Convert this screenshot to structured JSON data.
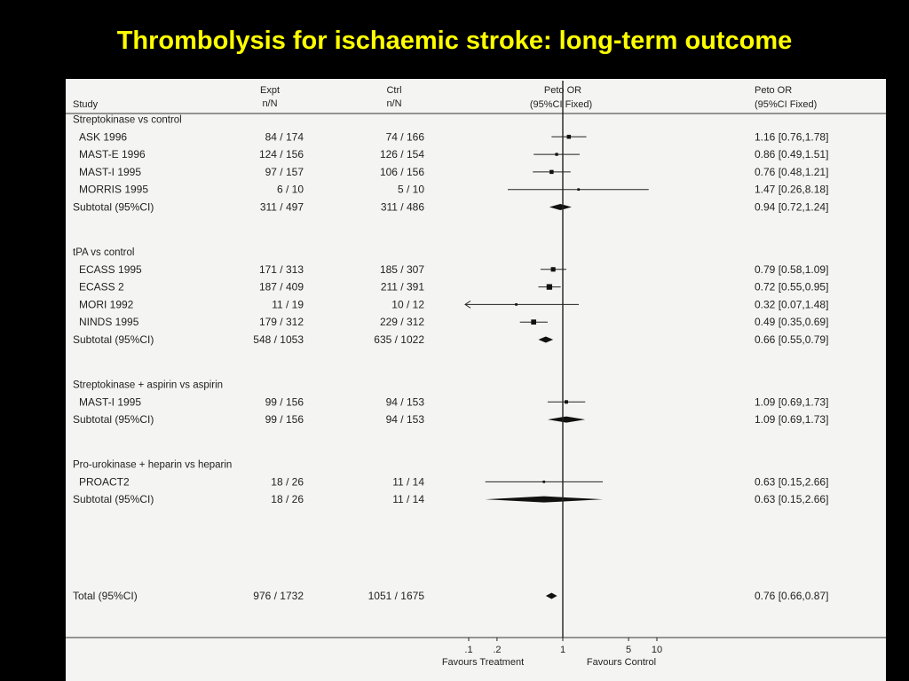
{
  "slide": {
    "title": "Thrombolysis for ischaemic stroke:  long-term outcome"
  },
  "headers": {
    "study": "Study",
    "expt": "Expt",
    "expt_sub": "n/N",
    "ctrl": "Ctrl",
    "ctrl_sub": "n/N",
    "or_title": "Peto OR",
    "or_sub": "(95%CI Fixed)",
    "or_text_title": "Peto OR",
    "or_text_sub": "(95%CI Fixed)"
  },
  "chart_data": {
    "type": "forest",
    "x_scale": "log",
    "xlim": [
      0.1,
      10
    ],
    "x_ticks": [
      {
        "value": 0.1,
        "label": ".1"
      },
      {
        "value": 0.2,
        "label": ".2"
      },
      {
        "value": 1,
        "label": "1"
      },
      {
        "value": 5,
        "label": "5"
      },
      {
        "value": 10,
        "label": "10"
      }
    ],
    "x_left_label": "Favours Treatment",
    "x_right_label": "Favours Control",
    "groups": [
      {
        "label": "Streptokinase vs control",
        "studies": [
          {
            "name": "ASK 1996",
            "expt": "84 / 174",
            "ctrl": "74 / 166",
            "or": 1.16,
            "lo": 0.76,
            "hi": 1.78,
            "ci_text": "1.16 [0.76,1.78]",
            "weight": 2.5
          },
          {
            "name": "MAST-E 1996",
            "expt": "124 / 156",
            "ctrl": "126 / 154",
            "or": 0.86,
            "lo": 0.49,
            "hi": 1.51,
            "ci_text": "0.86 [0.49,1.51]",
            "weight": 1.5
          },
          {
            "name": "MAST-I 1995",
            "expt": "97 / 157",
            "ctrl": "106 / 156",
            "or": 0.76,
            "lo": 0.48,
            "hi": 1.21,
            "ci_text": "0.76 [0.48,1.21]",
            "weight": 2.5
          },
          {
            "name": "MORRIS 1995",
            "expt": "6 / 10",
            "ctrl": "5 / 10",
            "or": 1.47,
            "lo": 0.26,
            "hi": 8.18,
            "ci_text": "1.47 [0.26,8.18]",
            "weight": 1
          }
        ],
        "subtotal": {
          "name": "Subtotal (95%CI)",
          "expt": "311 / 497",
          "ctrl": "311 / 486",
          "or": 0.94,
          "lo": 0.72,
          "hi": 1.24,
          "ci_text": "0.94 [0.72,1.24]"
        }
      },
      {
        "label": "tPA vs control",
        "studies": [
          {
            "name": "ECASS 1995",
            "expt": "171 / 313",
            "ctrl": "185 / 307",
            "or": 0.79,
            "lo": 0.58,
            "hi": 1.09,
            "ci_text": "0.79 [0.58,1.09]",
            "weight": 3
          },
          {
            "name": "ECASS 2",
            "expt": "187 / 409",
            "ctrl": "211 / 391",
            "or": 0.72,
            "lo": 0.55,
            "hi": 0.95,
            "ci_text": "0.72 [0.55,0.95]",
            "weight": 4
          },
          {
            "name": "MORI 1992",
            "expt": "11 / 19",
            "ctrl": "10 / 12",
            "or": 0.32,
            "lo": 0.07,
            "hi": 1.48,
            "ci_text": "0.32 [0.07,1.48]",
            "weight": 1,
            "lo_arrow": true
          },
          {
            "name": "NINDS 1995",
            "expt": "179 / 312",
            "ctrl": "229 / 312",
            "or": 0.49,
            "lo": 0.35,
            "hi": 0.69,
            "ci_text": "0.49 [0.35,0.69]",
            "weight": 3.5
          }
        ],
        "subtotal": {
          "name": "Subtotal (95%CI)",
          "expt": "548 / 1053",
          "ctrl": "635 / 1022",
          "or": 0.66,
          "lo": 0.55,
          "hi": 0.79,
          "ci_text": "0.66 [0.55,0.79]"
        }
      },
      {
        "label": "Streptokinase + aspirin vs aspirin",
        "studies": [
          {
            "name": "MAST-I 1995",
            "expt": "99 / 156",
            "ctrl": "94 / 153",
            "or": 1.09,
            "lo": 0.69,
            "hi": 1.73,
            "ci_text": "1.09 [0.69,1.73]",
            "weight": 2
          }
        ],
        "subtotal": {
          "name": "Subtotal (95%CI)",
          "expt": "99 / 156",
          "ctrl": "94 / 153",
          "or": 1.09,
          "lo": 0.69,
          "hi": 1.73,
          "ci_text": "1.09 [0.69,1.73]"
        }
      },
      {
        "label": "Pro-urokinase + heparin vs heparin",
        "studies": [
          {
            "name": "PROACT2",
            "expt": "18 / 26",
            "ctrl": "11 / 14",
            "or": 0.63,
            "lo": 0.15,
            "hi": 2.66,
            "ci_text": "0.63 [0.15,2.66]",
            "weight": 1
          }
        ],
        "subtotal": {
          "name": "Subtotal (95%CI)",
          "expt": "18 / 26",
          "ctrl": "11 / 14",
          "or": 0.63,
          "lo": 0.15,
          "hi": 2.66,
          "ci_text": "0.63 [0.15,2.66]"
        }
      }
    ],
    "total": {
      "name": "Total (95%CI)",
      "expt": "976 / 1732",
      "ctrl": "1051 / 1675",
      "or": 0.76,
      "lo": 0.66,
      "hi": 0.87,
      "ci_text": "0.76 [0.66,0.87]"
    }
  },
  "colors": {
    "background": "#000000",
    "title": "#ffff00",
    "panel": "#f4f4f2",
    "ink": "#222222"
  }
}
